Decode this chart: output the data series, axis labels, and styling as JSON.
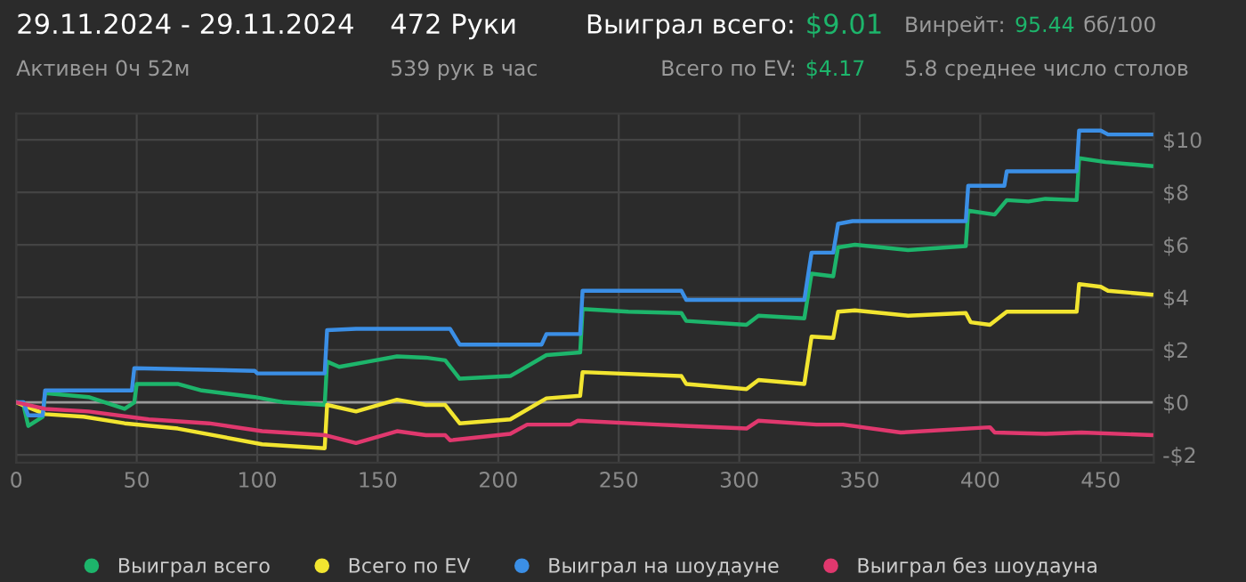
{
  "chart_data": {
    "type": "line",
    "annotations": [
      "29.11.2024 - 29.11.2024",
      "Активен 0ч 52м",
      "472 Руки",
      "539 рук в час",
      "Выиграл всего:",
      "$9.01",
      "Всего по EV:",
      "$4.17",
      "Винрейт:",
      "95.44",
      "бб/100",
      "5.8 среднее число столов"
    ],
    "xlim": [
      0,
      472
    ],
    "xticks": [
      0,
      50,
      100,
      150,
      200,
      250,
      300,
      350,
      400,
      450
    ],
    "ylim": [
      -2.3,
      11
    ],
    "yticks": [
      {
        "value": -2,
        "label": "-$2"
      },
      {
        "value": 0,
        "label": "$0"
      },
      {
        "value": 2,
        "label": "$2"
      },
      {
        "value": 4,
        "label": "$4"
      },
      {
        "value": 6,
        "label": "$6"
      },
      {
        "value": 8,
        "label": "$8"
      },
      {
        "value": 10,
        "label": "$10"
      }
    ],
    "grid": true,
    "legend": "bottom",
    "marker": "none",
    "line_style": "solid",
    "ref_lines": [
      {
        "axis": "y",
        "value": 0,
        "color": "#9a9a9a"
      }
    ],
    "series": [
      {
        "name": "Выиграл всего",
        "color": "#1db56b",
        "x": [
          0,
          3,
          5,
          11,
          12,
          30,
          45,
          49,
          50,
          67,
          77,
          99,
          111,
          128,
          129,
          134,
          146,
          158,
          170,
          178,
          184,
          205,
          220,
          234,
          235,
          254,
          276,
          278,
          303,
          308,
          327,
          330,
          339,
          341,
          348,
          370,
          394,
          395,
          406,
          411,
          420,
          427,
          440,
          441,
          452,
          471
        ],
        "values": [
          0,
          -0.1,
          -0.9,
          -0.55,
          0.35,
          0.2,
          -0.25,
          0,
          0.7,
          0.7,
          0.45,
          0.2,
          0,
          -0.1,
          1.55,
          1.35,
          1.55,
          1.75,
          1.7,
          1.6,
          0.9,
          1.0,
          1.8,
          1.9,
          3.55,
          3.45,
          3.4,
          3.1,
          2.95,
          3.3,
          3.2,
          4.9,
          4.8,
          5.9,
          6.0,
          5.8,
          5.95,
          7.3,
          7.15,
          7.7,
          7.65,
          7.75,
          7.7,
          9.3,
          9.15,
          9.0
        ]
      },
      {
        "name": "Всего по EV",
        "color": "#f2e530",
        "x": [
          0,
          12,
          28,
          45,
          67,
          102,
          128,
          129,
          141,
          158,
          170,
          178,
          184,
          205,
          220,
          234,
          235,
          276,
          278,
          303,
          308,
          327,
          330,
          339,
          341,
          348,
          370,
          394,
          396,
          404,
          411,
          440,
          441,
          450,
          453,
          471
        ],
        "values": [
          0,
          -0.45,
          -0.55,
          -0.8,
          -1.0,
          -1.6,
          -1.75,
          -0.1,
          -0.35,
          0.1,
          -0.1,
          -0.1,
          -0.8,
          -0.65,
          0.15,
          0.25,
          1.15,
          1.0,
          0.7,
          0.5,
          0.85,
          0.7,
          2.5,
          2.45,
          3.45,
          3.5,
          3.3,
          3.4,
          3.05,
          2.95,
          3.45,
          3.45,
          4.5,
          4.4,
          4.25,
          4.1
        ]
      },
      {
        "name": "Выиграл на шоудауне",
        "color": "#3b8fe6",
        "x": [
          0,
          3,
          5,
          11,
          12,
          48,
          49,
          99,
          100,
          128,
          129,
          141,
          180,
          184,
          218,
          220,
          234,
          235,
          276,
          278,
          327,
          330,
          339,
          341,
          347,
          394,
          395,
          410,
          411,
          440,
          441,
          450,
          453,
          471
        ],
        "values": [
          0,
          0,
          -0.5,
          -0.5,
          0.45,
          0.45,
          1.3,
          1.2,
          1.1,
          1.1,
          2.75,
          2.8,
          2.8,
          2.2,
          2.2,
          2.6,
          2.6,
          4.25,
          4.25,
          3.9,
          3.9,
          5.7,
          5.7,
          6.8,
          6.9,
          6.9,
          8.25,
          8.25,
          8.8,
          8.8,
          10.35,
          10.35,
          10.2,
          10.2
        ]
      },
      {
        "name": "Выиграл без шоудауна",
        "color": "#e0386e",
        "x": [
          0,
          12,
          30,
          55,
          80,
          102,
          128,
          141,
          158,
          170,
          178,
          180,
          205,
          212,
          230,
          233,
          266,
          303,
          308,
          332,
          343,
          367,
          404,
          406,
          427,
          442,
          471
        ],
        "values": [
          0,
          -0.25,
          -0.35,
          -0.65,
          -0.8,
          -1.1,
          -1.25,
          -1.55,
          -1.1,
          -1.25,
          -1.25,
          -1.45,
          -1.2,
          -0.85,
          -0.85,
          -0.7,
          -0.85,
          -1.0,
          -0.7,
          -0.85,
          -0.85,
          -1.15,
          -0.95,
          -1.15,
          -1.2,
          -1.15,
          -1.25
        ]
      }
    ]
  }
}
